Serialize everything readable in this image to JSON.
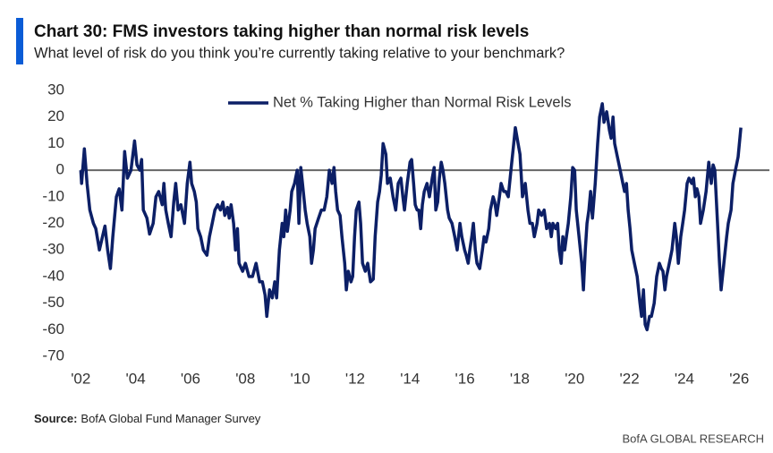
{
  "chart_data": {
    "type": "line",
    "title": "Chart 30: FMS investors taking higher than normal risk levels",
    "subtitle": "What level of risk do you think you’re currently taking relative to your benchmark?",
    "source": {
      "label": "Source:",
      "text": "BofA Global Fund Manager Survey"
    },
    "branding": "BofA GLOBAL RESEARCH",
    "legend": "top",
    "reference_line": 0,
    "xlim": [
      2001.6,
      2027.1
    ],
    "ylim": [
      -70,
      30
    ],
    "yticks": [
      30,
      20,
      10,
      0,
      -10,
      -20,
      -30,
      -40,
      -50,
      -60,
      -70
    ],
    "xticks": [
      {
        "value": 2002,
        "label": "'02"
      },
      {
        "value": 2004,
        "label": "'04"
      },
      {
        "value": 2006,
        "label": "'06"
      },
      {
        "value": 2008,
        "label": "'08"
      },
      {
        "value": 2010,
        "label": "'10"
      },
      {
        "value": 2012,
        "label": "'12"
      },
      {
        "value": 2014,
        "label": "'14"
      },
      {
        "value": 2016,
        "label": "'16"
      },
      {
        "value": 2018,
        "label": "'18"
      },
      {
        "value": 2020,
        "label": "'20"
      },
      {
        "value": 2022,
        "label": "'22"
      },
      {
        "value": 2024,
        "label": "'24"
      },
      {
        "value": 2026,
        "label": "'26"
      }
    ],
    "x": [
      2002.0,
      2002.03,
      2002.13,
      2002.23,
      2002.33,
      2002.46,
      2002.55,
      2002.68,
      2002.88,
      2002.98,
      2003.08,
      2003.17,
      2003.3,
      2003.4,
      2003.5,
      2003.6,
      2003.7,
      2003.83,
      2003.96,
      2004.05,
      2004.15,
      2004.22,
      2004.28,
      2004.41,
      2004.51,
      2004.64,
      2004.74,
      2004.84,
      2004.97,
      2005.03,
      2005.1,
      2005.19,
      2005.29,
      2005.39,
      2005.46,
      2005.55,
      2005.65,
      2005.78,
      2005.88,
      2005.98,
      2006.04,
      2006.14,
      2006.21,
      2006.27,
      2006.37,
      2006.47,
      2006.6,
      2006.69,
      2006.79,
      2006.89,
      2006.99,
      2007.09,
      2007.18,
      2007.25,
      2007.35,
      2007.41,
      2007.48,
      2007.57,
      2007.64,
      2007.71,
      2007.77,
      2007.9,
      2008.0,
      2008.13,
      2008.26,
      2008.39,
      2008.52,
      2008.62,
      2008.72,
      2008.78,
      2008.88,
      2008.98,
      2009.07,
      2009.14,
      2009.24,
      2009.34,
      2009.4,
      2009.47,
      2009.53,
      2009.63,
      2009.69,
      2009.79,
      2009.89,
      2009.95,
      2010.02,
      2010.08,
      2010.18,
      2010.25,
      2010.35,
      2010.41,
      2010.48,
      2010.54,
      2010.67,
      2010.77,
      2010.87,
      2010.97,
      2011.06,
      2011.16,
      2011.23,
      2011.29,
      2011.36,
      2011.45,
      2011.52,
      2011.62,
      2011.68,
      2011.75,
      2011.85,
      2011.91,
      2011.98,
      2012.04,
      2012.14,
      2012.2,
      2012.27,
      2012.37,
      2012.46,
      2012.56,
      2012.66,
      2012.73,
      2012.82,
      2012.89,
      2012.95,
      2013.02,
      2013.12,
      2013.18,
      2013.28,
      2013.38,
      2013.48,
      2013.57,
      2013.67,
      2013.74,
      2013.8,
      2013.9,
      2014.0,
      2014.06,
      2014.13,
      2014.19,
      2014.26,
      2014.32,
      2014.39,
      2014.45,
      2014.52,
      2014.62,
      2014.71,
      2014.81,
      2014.88,
      2014.94,
      2015.01,
      2015.07,
      2015.14,
      2015.2,
      2015.27,
      2015.37,
      2015.43,
      2015.53,
      2015.63,
      2015.72,
      2015.82,
      2015.89,
      2015.99,
      2016.05,
      2016.12,
      2016.18,
      2016.25,
      2016.31,
      2016.38,
      2016.44,
      2016.54,
      2016.64,
      2016.7,
      2016.77,
      2016.87,
      2016.93,
      2017.03,
      2017.09,
      2017.16,
      2017.26,
      2017.32,
      2017.42,
      2017.49,
      2017.58,
      2017.68,
      2017.78,
      2017.84,
      2017.94,
      2018.01,
      2018.1,
      2018.2,
      2018.3,
      2018.37,
      2018.46,
      2018.53,
      2018.63,
      2018.69,
      2018.79,
      2018.89,
      2018.98,
      2019.08,
      2019.15,
      2019.21,
      2019.31,
      2019.38,
      2019.44,
      2019.51,
      2019.57,
      2019.64,
      2019.7,
      2019.77,
      2019.86,
      2019.93,
      2020.0,
      2020.06,
      2020.16,
      2020.26,
      2020.32,
      2020.39,
      2020.45,
      2020.52,
      2020.58,
      2020.65,
      2020.75,
      2020.84,
      2020.91,
      2021.01,
      2021.07,
      2021.17,
      2021.27,
      2021.33,
      2021.4,
      2021.46,
      2021.56,
      2021.66,
      2021.76,
      2021.82,
      2021.89,
      2021.95,
      2022.02,
      2022.08,
      2022.18,
      2022.28,
      2022.38,
      2022.44,
      2022.51,
      2022.57,
      2022.64,
      2022.73,
      2022.8,
      2022.9,
      2022.99,
      2023.09,
      2023.16,
      2023.22,
      2023.29,
      2023.35,
      2023.45,
      2023.55,
      2023.65,
      2023.71,
      2023.78,
      2023.87,
      2023.94,
      2024.01,
      2024.1,
      2024.17,
      2024.27,
      2024.33,
      2024.4,
      2024.46,
      2024.53,
      2024.59,
      2024.69,
      2024.79,
      2024.89,
      2024.98,
      2025.05,
      2025.11,
      2025.21,
      2025.28,
      2025.34,
      2025.44,
      2025.54,
      2025.6,
      2025.7,
      2025.77,
      2025.86,
      2025.96,
      2026.06
    ],
    "series": [
      {
        "name": "Net % Taking Higher than Normal Risk Levels",
        "color": "#0c1f66",
        "values": [
          0,
          -5,
          8,
          -5,
          -15,
          -20,
          -22,
          -30,
          -21,
          -30,
          -37,
          -25,
          -10,
          -7,
          -15,
          7,
          -3,
          0,
          11,
          2,
          0,
          4,
          -15,
          -18,
          -24,
          -20,
          -10,
          -8,
          -13,
          -5,
          -15,
          -20,
          -25,
          -12,
          -5,
          -15,
          -13,
          -20,
          -5,
          3,
          -5,
          -8,
          -12,
          -22,
          -25,
          -30,
          -32,
          -25,
          -20,
          -15,
          -13,
          -15,
          -12,
          -17,
          -14,
          -18,
          -13,
          -20,
          -30,
          -22,
          -35,
          -38,
          -35,
          -40,
          -40,
          -35,
          -42,
          -42,
          -47,
          -55,
          -45,
          -48,
          -42,
          -48,
          -30,
          -20,
          -25,
          -15,
          -23,
          -15,
          -8,
          -5,
          0,
          -20,
          1,
          -5,
          -15,
          -20,
          -25,
          -35,
          -30,
          -22,
          -18,
          -15,
          -15,
          -10,
          0,
          -5,
          1,
          -8,
          -15,
          -17,
          -25,
          -35,
          -45,
          -38,
          -42,
          -40,
          -25,
          -15,
          -12,
          -20,
          -35,
          -38,
          -35,
          -42,
          -41,
          -25,
          -12,
          -8,
          -2,
          10,
          6,
          -5,
          -3,
          -10,
          -15,
          -5,
          -3,
          -10,
          -15,
          -5,
          3,
          4,
          -5,
          -13,
          -15,
          -15,
          -22,
          -13,
          -8,
          -5,
          -10,
          -3,
          1,
          -15,
          -12,
          -3,
          3,
          0,
          -5,
          -15,
          -18,
          -20,
          -25,
          -30,
          -20,
          -25,
          -30,
          -32,
          -35,
          -30,
          -25,
          -20,
          -30,
          -35,
          -37,
          -30,
          -25,
          -27,
          -22,
          -15,
          -10,
          -12,
          -17,
          -10,
          -5,
          -8,
          -8,
          -10,
          0,
          10,
          16,
          10,
          6,
          -10,
          -5,
          -15,
          -20,
          -20,
          -25,
          -20,
          -15,
          -17,
          -15,
          -22,
          -20,
          -25,
          -20,
          -22,
          -20,
          -30,
          -35,
          -25,
          -30,
          -25,
          -20,
          -10,
          1,
          0,
          -15,
          -25,
          -35,
          -45,
          -30,
          -20,
          -15,
          -8,
          -18,
          -5,
          10,
          20,
          25,
          18,
          22,
          15,
          12,
          20,
          10,
          5,
          0,
          -5,
          -8,
          -5,
          -15,
          -22,
          -30,
          -35,
          -40,
          -50,
          -55,
          -45,
          -58,
          -60,
          -55,
          -55,
          -50,
          -40,
          -35,
          -37,
          -38,
          -45,
          -40,
          -35,
          -30,
          -20,
          -25,
          -35,
          -25,
          -20,
          -15,
          -5,
          -3,
          -5,
          -3,
          -10,
          -7,
          -10,
          -20,
          -15,
          -8,
          3,
          -5,
          2,
          0,
          -20,
          -35,
          -45,
          -35,
          -25,
          -20,
          -15,
          -5,
          0,
          5,
          16
        ]
      }
    ]
  }
}
